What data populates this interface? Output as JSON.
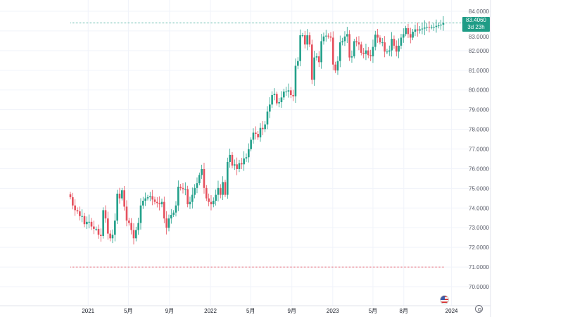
{
  "chart_data": {
    "type": "candlestick",
    "interval": "1W",
    "x_start": "2020-11-09",
    "colors": {
      "up": "#22a08a",
      "down": "#e5505d",
      "last_price_line": "#1f9c86",
      "low_line": "#e5505d",
      "grid": "#f0f3fa"
    },
    "ylim": [
      69.5,
      84.6
    ],
    "y_ticks": [
      "84.0000",
      "83.0000",
      "82.0000",
      "81.0000",
      "80.0000",
      "79.0000",
      "78.0000",
      "77.0000",
      "76.0000",
      "75.0000",
      "74.0000",
      "73.0000",
      "72.0000",
      "71.0000",
      "70.0000"
    ],
    "x_ticks": [
      {
        "label": "2021",
        "date": "2021-01-01"
      },
      {
        "label": "5月",
        "date": "2021-05-01"
      },
      {
        "label": "9月",
        "date": "2021-09-01"
      },
      {
        "label": "2022",
        "date": "2022-01-01"
      },
      {
        "label": "5月",
        "date": "2022-05-01"
      },
      {
        "label": "9月",
        "date": "2022-09-01"
      },
      {
        "label": "2023",
        "date": "2023-01-01"
      },
      {
        "label": "5月",
        "date": "2023-05-01"
      },
      {
        "label": "8月",
        "date": "2023-08-01"
      },
      {
        "label": "2024",
        "date": "2024-01-01"
      }
    ],
    "first_open": 74.7,
    "close": [
      74.55,
      74.13,
      73.89,
      73.83,
      73.59,
      73.59,
      73.18,
      73.3,
      73.3,
      73.06,
      72.94,
      72.94,
      72.64,
      72.58,
      73.89,
      73.47,
      72.7,
      72.46,
      72.64,
      73.36,
      74.73,
      74.49,
      74.9,
      74.07,
      73.36,
      73.24,
      72.88,
      72.46,
      72.88,
      73.24,
      74.13,
      74.37,
      74.49,
      74.55,
      74.6,
      74.43,
      74.31,
      74.25,
      74.19,
      74.31,
      73.47,
      72.99,
      73.47,
      73.65,
      73.77,
      74.13,
      75.08,
      75.02,
      74.96,
      74.96,
      74.19,
      74.31,
      74.67,
      75.02,
      75.26,
      75.68,
      75.98,
      75.02,
      74.49,
      74.31,
      74.19,
      74.37,
      74.67,
      75.02,
      74.67,
      75.32,
      74.67,
      76.34,
      76.7,
      76.16,
      76.22,
      75.98,
      76.28,
      76.22,
      76.52,
      76.58,
      76.99,
      77.47,
      77.83,
      77.77,
      77.59,
      78.07,
      78.01,
      78.25,
      78.9,
      79.26,
      79.74,
      79.8,
      79.32,
      79.38,
      79.62,
      79.92,
      79.92,
      79.98,
      79.74,
      79.68,
      81.23,
      81.47,
      82.78,
      82.78,
      82.31,
      82.78,
      82.31,
      80.52,
      81.65,
      81.71,
      81.41,
      82.48,
      82.72,
      82.76,
      82.72,
      82.66,
      81.29,
      80.99,
      81.47,
      82.42,
      82.48,
      82.72,
      82.84,
      81.65,
      81.71,
      82.48,
      82.42,
      82.31,
      81.89,
      81.83,
      82.01,
      81.77,
      81.71,
      82.19,
      82.81,
      82.66,
      82.42,
      82.42,
      81.95,
      81.95,
      82.01,
      82.6,
      82.25,
      81.95,
      82.25,
      82.66,
      82.84,
      83.14,
      82.84,
      82.66,
      82.96,
      83.08,
      83.02,
      83.08,
      83.12,
      83.17,
      83.2,
      83.19,
      83.2,
      83.2,
      83.26,
      83.28,
      83.32,
      83.406
    ],
    "last_price": "83.4060",
    "countdown": "3d 23h",
    "low_line_value": 71.0
  },
  "icons": {
    "settings": "gear-icon",
    "event": "us-flag-icon"
  }
}
